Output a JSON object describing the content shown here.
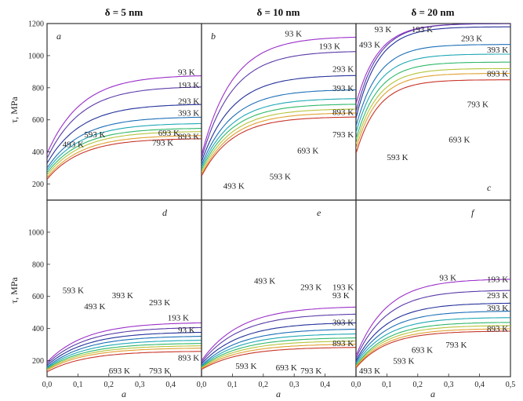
{
  "chart_data": {
    "type": "line",
    "layout": "grid 2x3",
    "column_titles": [
      "δ = 5 nm",
      "δ = 10 nm",
      "δ = 20 nm"
    ],
    "ylabel": "τ, MPa",
    "xlabel": "a",
    "xlim": [
      0,
      0.5
    ],
    "ylim": [
      100,
      1200
    ],
    "x_ticks": [
      "0,0",
      "0,1",
      "0,2",
      "0,3",
      "0,4",
      "0,5"
    ],
    "y_ticks": [
      200,
      400,
      600,
      800,
      1000,
      1200
    ],
    "y_ticks_bottom": [
      200,
      400,
      600,
      800,
      1000
    ],
    "temperatures": [
      "93 K",
      "193 K",
      "293 K",
      "393 K",
      "493 K",
      "593 K",
      "693 K",
      "793 K",
      "893 K"
    ],
    "series_colors": [
      "#9b30c9",
      "#5a3aa8",
      "#23309a",
      "#1d6fb8",
      "#20a8b5",
      "#2fb86a",
      "#b6c43a",
      "#e0a030",
      "#c8362a"
    ],
    "panels": [
      {
        "letter": "a",
        "y0": [
          390,
          360,
          330,
          300,
          285,
          270,
          255,
          240,
          230
        ],
        "ymax": [
          880,
          810,
          700,
          620,
          580,
          550,
          530,
          505,
          485
        ],
        "k": 9,
        "labels": [
          {
            "text": "93 K"
          },
          {
            "text": "193 K"
          },
          {
            "text": "293 K"
          },
          {
            "text": "393 K"
          },
          {
            "text": "493 K"
          },
          {
            "text": "593 K"
          },
          {
            "text": "693 K"
          },
          {
            "text": "793 K"
          },
          {
            "text": "893 K"
          }
        ]
      },
      {
        "letter": "b",
        "y0": [
          380,
          360,
          340,
          320,
          305,
          290,
          275,
          260,
          250
        ],
        "ymax": [
          1120,
          1030,
          880,
          790,
          735,
          700,
          670,
          645,
          620
        ],
        "k": 10,
        "labels": [
          {
            "text": "93 K"
          },
          {
            "text": "193 K"
          },
          {
            "text": "293 K"
          },
          {
            "text": "393 K"
          },
          {
            "text": "493 K"
          },
          {
            "text": "593 K"
          },
          {
            "text": "693 K"
          },
          {
            "text": "793 K"
          },
          {
            "text": "893 K"
          }
        ]
      },
      {
        "letter": "c",
        "y0": [
          700,
          650,
          610,
          560,
          520,
          480,
          450,
          420,
          390
        ],
        "ymax": [
          1200,
          1200,
          1180,
          1070,
          1010,
          960,
          920,
          890,
          850
        ],
        "k": 14,
        "labels": [
          {
            "text": "93 K"
          },
          {
            "text": "193 K"
          },
          {
            "text": "293 K"
          },
          {
            "text": "393 K"
          },
          {
            "text": "493 K"
          },
          {
            "text": "593 K"
          },
          {
            "text": "693 K"
          },
          {
            "text": "793 K"
          },
          {
            "text": "893 K"
          }
        ]
      },
      {
        "letter": "d",
        "y0": [
          190,
          180,
          170,
          160,
          155,
          150,
          145,
          140,
          130
        ],
        "ymax": [
          440,
          410,
          380,
          355,
          330,
          310,
          295,
          280,
          260
        ],
        "k": 8,
        "labels": [
          {
            "text": "93 K"
          },
          {
            "text": "193 K"
          },
          {
            "text": "293 K"
          },
          {
            "text": "393 K"
          },
          {
            "text": "493 K"
          },
          {
            "text": "593 K"
          },
          {
            "text": "693 K"
          },
          {
            "text": "793 K"
          },
          {
            "text": "893 K"
          }
        ]
      },
      {
        "letter": "e",
        "y0": [
          200,
          190,
          180,
          170,
          165,
          160,
          155,
          150,
          145
        ],
        "ymax": [
          540,
          495,
          440,
          400,
          370,
          345,
          325,
          305,
          285
        ],
        "k": 8,
        "labels": [
          {
            "text": "93 K"
          },
          {
            "text": "193 K"
          },
          {
            "text": "293 K"
          },
          {
            "text": "393 K"
          },
          {
            "text": "493 K"
          },
          {
            "text": "593 K"
          },
          {
            "text": "693 K"
          },
          {
            "text": "793 K"
          },
          {
            "text": "893 K"
          }
        ]
      },
      {
        "letter": "f",
        "y0": [
          230,
          215,
          200,
          190,
          180,
          170,
          165,
          160,
          155
        ],
        "ymax": [
          710,
          640,
          560,
          510,
          470,
          440,
          420,
          400,
          385
        ],
        "k": 10,
        "labels": [
          {
            "text": "93 K"
          },
          {
            "text": "193 K"
          },
          {
            "text": "293 K"
          },
          {
            "text": "393 K"
          },
          {
            "text": "493 K"
          },
          {
            "text": "593 K"
          },
          {
            "text": "693 K"
          },
          {
            "text": "793 K"
          },
          {
            "text": "893 K"
          }
        ]
      }
    ]
  }
}
